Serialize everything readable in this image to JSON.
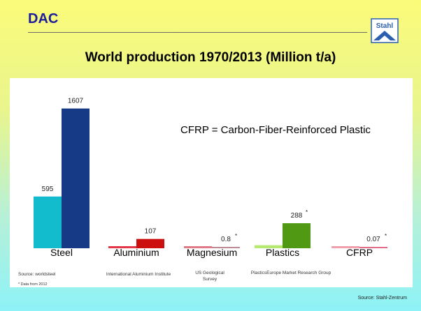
{
  "header": {
    "brand": "DAC",
    "logo_text": "Stahl",
    "colors": {
      "brand": "#1d1d9a",
      "logo": "#2a5fb0"
    }
  },
  "chart_data": {
    "type": "bar",
    "title": "World production 1970/2013 (Million t/a)",
    "annotation": "CFRP = Carbon-Fiber-Reinforced Plastic",
    "categories": [
      "Steel",
      "Aluminium",
      "Magnesium",
      "Plastics",
      "CFRP"
    ],
    "series": [
      {
        "values": [
          595,
          10,
          0.1,
          35,
          0.001
        ],
        "labels": [
          "595",
          "",
          "",
          "",
          ""
        ],
        "colors": [
          "#12bccc",
          "#e3384a",
          "#e07a86",
          "#b6ea6e",
          "#f0a0ac"
        ]
      },
      {
        "values": [
          1607,
          107,
          0.8,
          288,
          0.07
        ],
        "labels": [
          "1607",
          "107",
          "0.8",
          "288",
          "0.07"
        ],
        "starred": [
          false,
          false,
          true,
          true,
          true
        ],
        "colors": [
          "#163a86",
          "#cc0f0f",
          "#c08a94",
          "#4f9a12",
          "#e06e8a"
        ]
      }
    ],
    "ylim": [
      0,
      1700
    ],
    "grid": false,
    "legend": "none"
  },
  "sources": [
    "Source:   worldsteel",
    "International Aluminium Institute",
    "US Geological Survey",
    "PlasticsEurope Market Research Group"
  ],
  "data_note": "* Data from 2012",
  "footer": "Source: Stahl-Zentrum"
}
